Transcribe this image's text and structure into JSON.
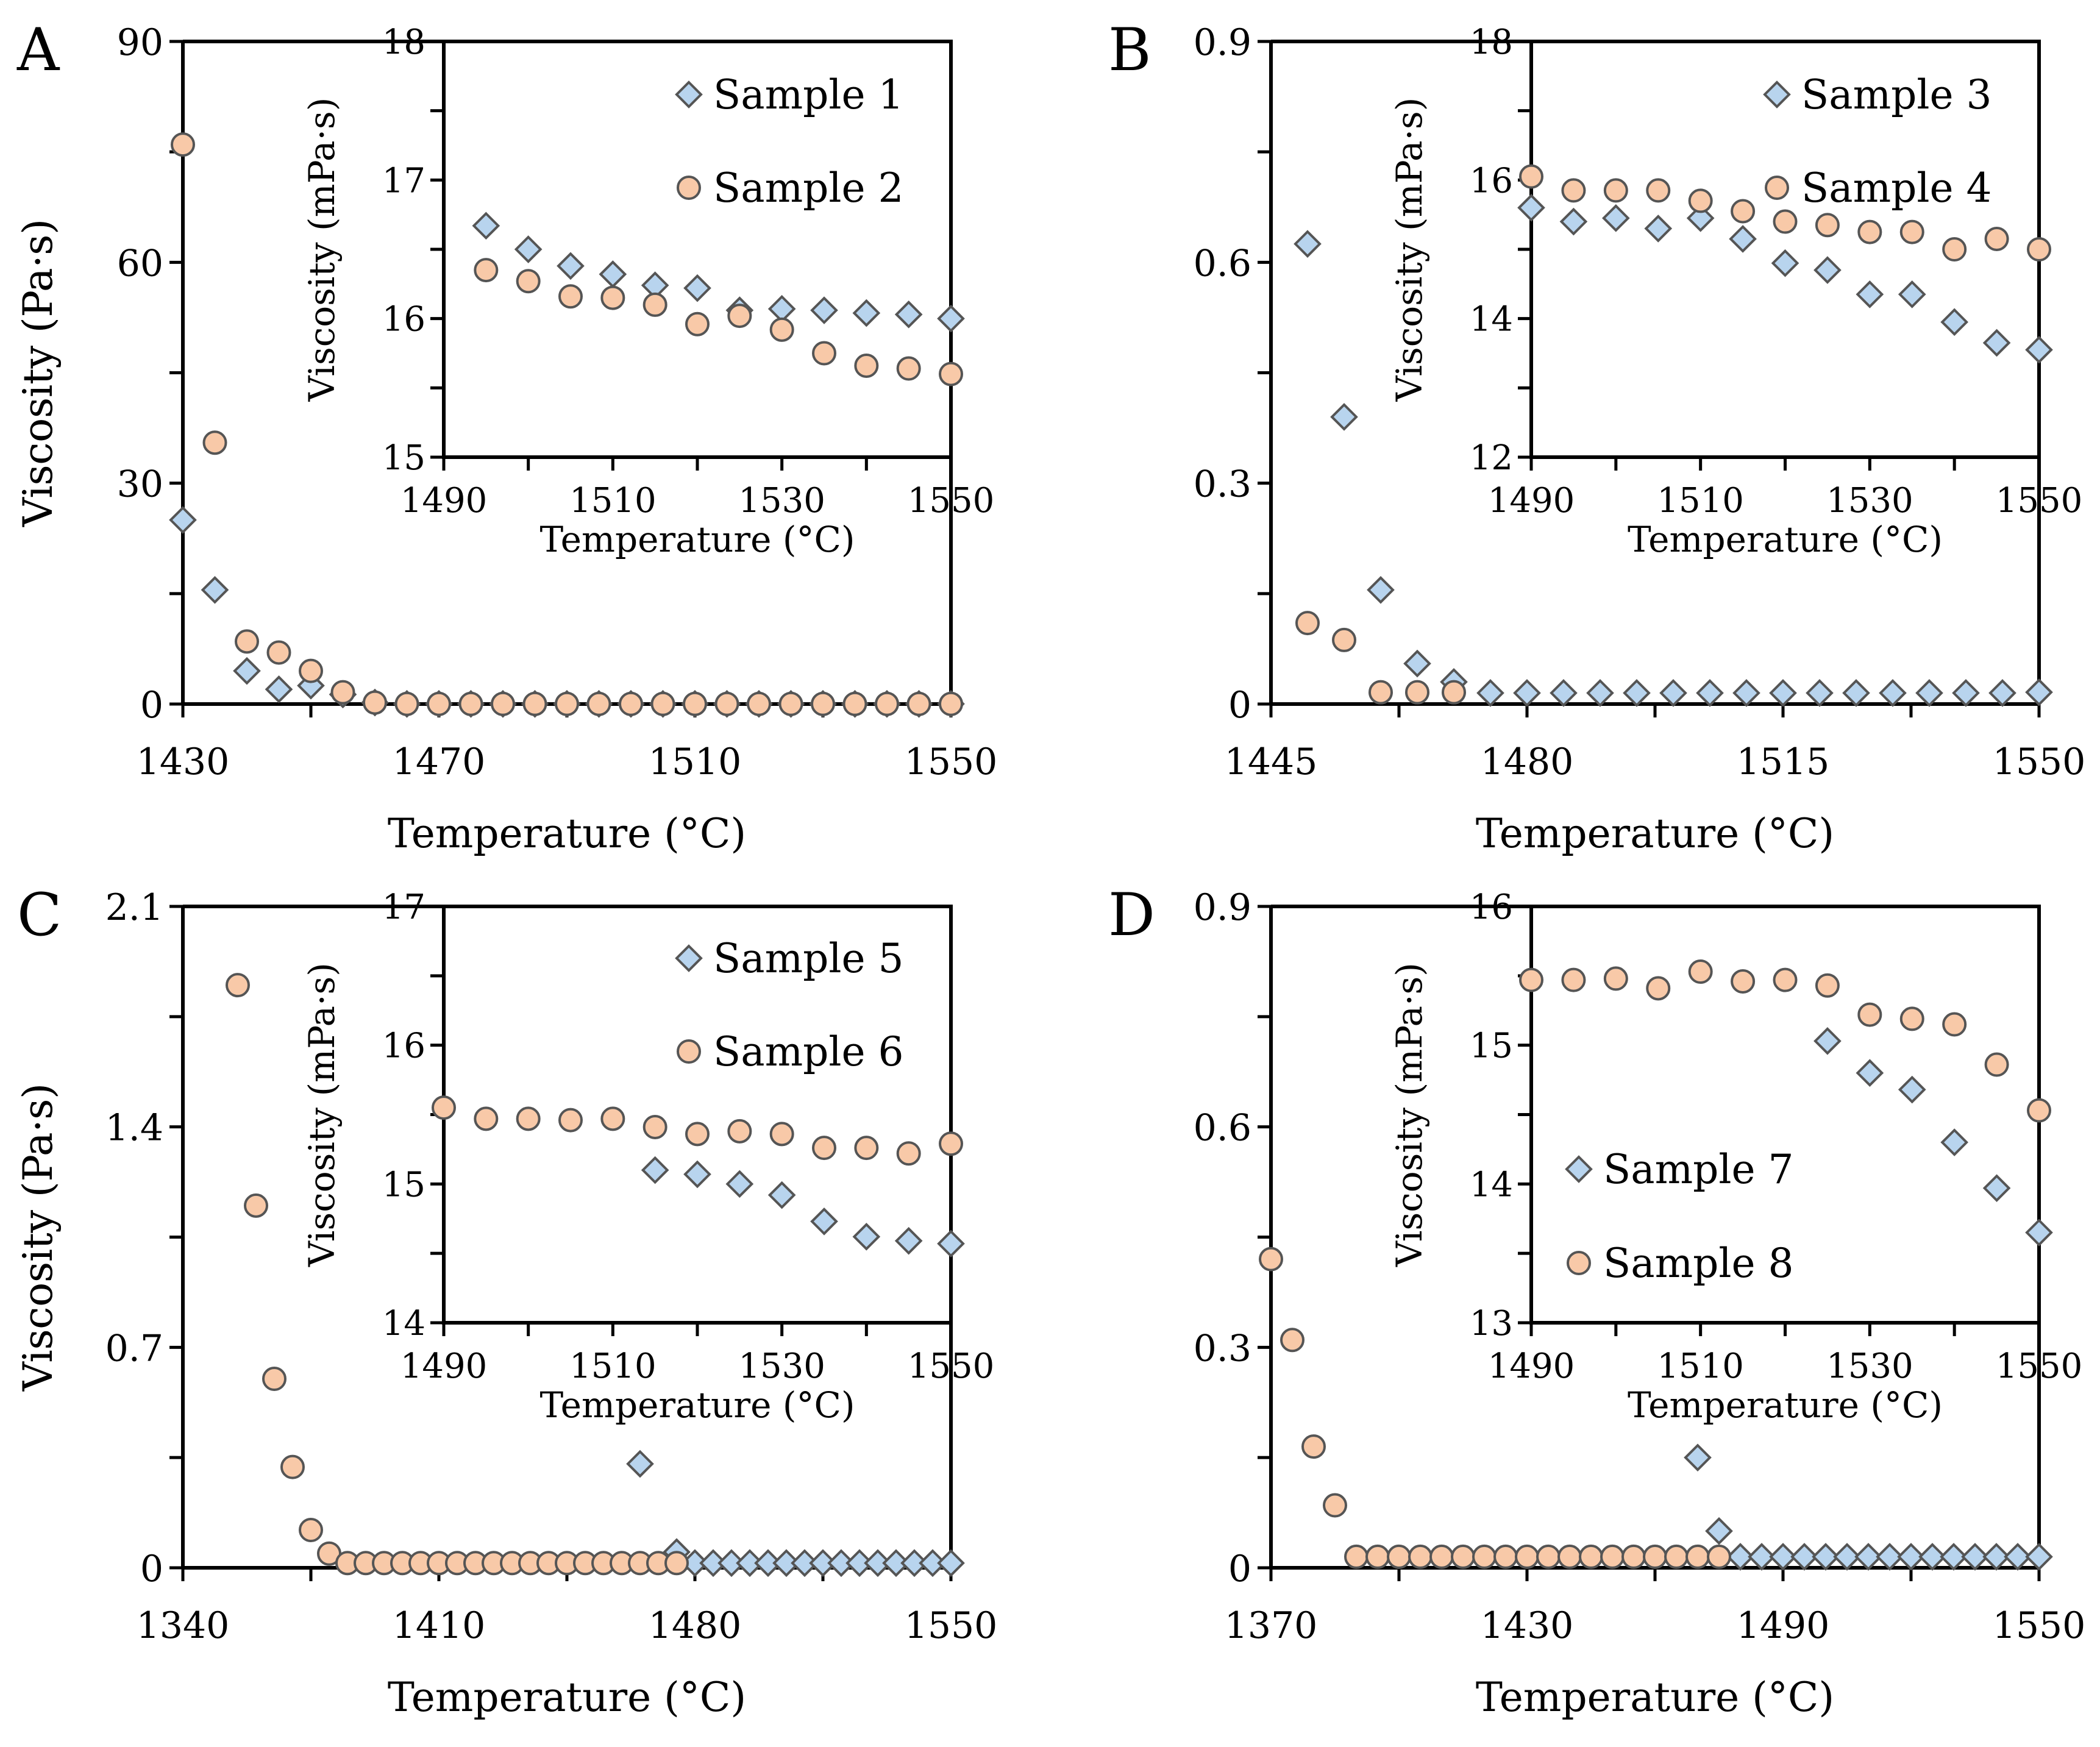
{
  "colors": {
    "sample_odd": "#b8d4ee",
    "sample_even": "#f8c9a8",
    "marker_edge": "#555555",
    "axis": "#000000"
  },
  "chart_data": [
    {
      "panel": "A",
      "type": "scatter",
      "xlabel": "Temperature (°C)",
      "ylabel": "Viscosity (Pa·s)",
      "xlim": [
        1430,
        1550
      ],
      "ylim": [
        0,
        90
      ],
      "xticks": [
        1430,
        1470,
        1510,
        1550
      ],
      "yticks": [
        0,
        30,
        60,
        90
      ],
      "series": [
        {
          "name": "Sample 1",
          "marker": "diamond",
          "x": [
            1430,
            1435,
            1440,
            1445,
            1450,
            1455,
            1460,
            1465,
            1470,
            1475,
            1480,
            1485,
            1490,
            1495,
            1500,
            1505,
            1510,
            1515,
            1520,
            1525,
            1530,
            1535,
            1540,
            1545,
            1550
          ],
          "y": [
            25,
            15.5,
            4.5,
            2,
            2.5,
            1.3,
            0.2,
            0.02,
            0.02,
            0.02,
            0.02,
            0.02,
            0.02,
            0.02,
            0.02,
            0.02,
            0.02,
            0.02,
            0.02,
            0.02,
            0.02,
            0.02,
            0.02,
            0.02,
            0.02
          ]
        },
        {
          "name": "Sample 2",
          "marker": "circle",
          "x": [
            1430,
            1435,
            1440,
            1445,
            1450,
            1455,
            1460,
            1465,
            1470,
            1475,
            1480,
            1485,
            1490,
            1495,
            1500,
            1505,
            1510,
            1515,
            1520,
            1525,
            1530,
            1535,
            1540,
            1545,
            1550
          ],
          "y": [
            76,
            35.5,
            8.5,
            7,
            4.5,
            1.6,
            0.2,
            0.02,
            0.02,
            0.02,
            0.02,
            0.02,
            0.02,
            0.02,
            0.02,
            0.02,
            0.02,
            0.02,
            0.02,
            0.02,
            0.02,
            0.02,
            0.02,
            0.02,
            0.02
          ]
        }
      ],
      "inset": {
        "xlabel": "Temperature (°C)",
        "ylabel": "Viscosity (mPa·s)",
        "xlim": [
          1490,
          1550
        ],
        "ylim": [
          15,
          18
        ],
        "xticks": [
          1490,
          1510,
          1530,
          1550
        ],
        "yticks": [
          15,
          16,
          17,
          18
        ],
        "legend_position": "top-right",
        "series": [
          {
            "name": "Sample 1",
            "marker": "diamond",
            "x": [
              1495,
              1500,
              1505,
              1510,
              1515,
              1520,
              1525,
              1530,
              1535,
              1540,
              1545,
              1550
            ],
            "y": [
              16.67,
              16.5,
              16.38,
              16.32,
              16.24,
              16.22,
              16.06,
              16.07,
              16.06,
              16.04,
              16.03,
              16.0
            ]
          },
          {
            "name": "Sample 2",
            "marker": "circle",
            "x": [
              1495,
              1500,
              1505,
              1510,
              1515,
              1520,
              1525,
              1530,
              1535,
              1540,
              1545,
              1550
            ],
            "y": [
              16.35,
              16.27,
              16.16,
              16.15,
              16.1,
              15.96,
              16.02,
              15.92,
              15.75,
              15.66,
              15.64,
              15.6
            ]
          }
        ]
      }
    },
    {
      "panel": "B",
      "type": "scatter",
      "xlabel": "Temperature (°C)",
      "ylabel": "Viscosity (Pa·s)",
      "xlim": [
        1445,
        1550
      ],
      "ylim": [
        0,
        0.9
      ],
      "xticks": [
        1445,
        1480,
        1515,
        1550
      ],
      "yticks": [
        0,
        0.3,
        0.6,
        0.9
      ],
      "series": [
        {
          "name": "Sample 3",
          "marker": "diamond",
          "x": [
            1450,
            1455,
            1460,
            1465,
            1470,
            1475,
            1480,
            1485,
            1490,
            1495,
            1500,
            1505,
            1510,
            1515,
            1520,
            1525,
            1530,
            1535,
            1540,
            1545,
            1550
          ],
          "y": [
            0.625,
            0.39,
            0.155,
            0.055,
            0.03,
            0.015,
            0.015,
            0.015,
            0.015,
            0.015,
            0.015,
            0.015,
            0.015,
            0.015,
            0.015,
            0.015,
            0.015,
            0.015,
            0.015,
            0.015,
            0.016
          ]
        },
        {
          "name": "Sample 4",
          "marker": "circle",
          "x": [
            1450,
            1455,
            1460,
            1465,
            1470
          ],
          "y": [
            0.11,
            0.087,
            0.016,
            0.016,
            0.016
          ]
        }
      ],
      "inset": {
        "xlabel": "Temperature (°C)",
        "ylabel": "Viscosity (mPa·s)",
        "xlim": [
          1490,
          1550
        ],
        "ylim": [
          12,
          18
        ],
        "xticks": [
          1490,
          1510,
          1530,
          1550
        ],
        "yticks": [
          12,
          14,
          16,
          18
        ],
        "legend_position": "top-right",
        "series": [
          {
            "name": "Sample 3",
            "marker": "diamond",
            "x": [
              1490,
              1495,
              1500,
              1505,
              1510,
              1515,
              1520,
              1525,
              1530,
              1535,
              1540,
              1545,
              1550
            ],
            "y": [
              15.6,
              15.4,
              15.45,
              15.3,
              15.45,
              15.15,
              14.8,
              14.7,
              14.35,
              14.35,
              13.95,
              13.65,
              13.55
            ]
          },
          {
            "name": "Sample 4",
            "marker": "circle",
            "x": [
              1490,
              1495,
              1500,
              1505,
              1510,
              1515,
              1520,
              1525,
              1530,
              1535,
              1540,
              1545,
              1550
            ],
            "y": [
              16.05,
              15.85,
              15.85,
              15.85,
              15.7,
              15.55,
              15.4,
              15.35,
              15.25,
              15.25,
              15.0,
              15.15,
              15.0
            ]
          }
        ]
      }
    },
    {
      "panel": "C",
      "type": "scatter",
      "xlabel": "Temperature (°C)",
      "ylabel": "Viscosity (Pa·s)",
      "xlim": [
        1340,
        1550
      ],
      "ylim": [
        0,
        2.1
      ],
      "xticks": [
        1340,
        1410,
        1480,
        1550
      ],
      "yticks": [
        0,
        0.7,
        1.4,
        2.1
      ],
      "series": [
        {
          "name": "Sample 5",
          "marker": "diamond",
          "x": [
            1465,
            1475,
            1480,
            1485,
            1490,
            1495,
            1500,
            1505,
            1510,
            1515,
            1520,
            1525,
            1530,
            1535,
            1540,
            1545,
            1550
          ],
          "y": [
            0.33,
            0.05,
            0.015,
            0.015,
            0.015,
            0.015,
            0.015,
            0.015,
            0.015,
            0.015,
            0.015,
            0.015,
            0.015,
            0.015,
            0.015,
            0.015,
            0.015
          ]
        },
        {
          "name": "Sample 6",
          "marker": "circle",
          "x": [
            1355,
            1360,
            1365,
            1370,
            1375,
            1380,
            1385,
            1390,
            1395,
            1400,
            1405,
            1410,
            1415,
            1420,
            1425,
            1430,
            1435,
            1440,
            1445,
            1450,
            1455,
            1460,
            1465,
            1470,
            1475
          ],
          "y": [
            1.85,
            1.15,
            0.6,
            0.32,
            0.12,
            0.045,
            0.015,
            0.015,
            0.015,
            0.015,
            0.015,
            0.015,
            0.015,
            0.015,
            0.015,
            0.015,
            0.015,
            0.015,
            0.015,
            0.015,
            0.015,
            0.015,
            0.015,
            0.015,
            0.015
          ]
        }
      ],
      "inset": {
        "xlabel": "Temperature (°C)",
        "ylabel": "Viscosity (mPa·s)",
        "xlim": [
          1490,
          1550
        ],
        "ylim": [
          14,
          17
        ],
        "xticks": [
          1490,
          1510,
          1530,
          1550
        ],
        "yticks": [
          14,
          15,
          16,
          17
        ],
        "legend_position": "top-right",
        "series": [
          {
            "name": "Sample 5",
            "marker": "diamond",
            "x": [
              1515,
              1520,
              1525,
              1530,
              1535,
              1540,
              1545,
              1550
            ],
            "y": [
              15.1,
              15.07,
              15.0,
              14.92,
              14.73,
              14.62,
              14.59,
              14.57
            ]
          },
          {
            "name": "Sample 6",
            "marker": "circle",
            "x": [
              1490,
              1495,
              1500,
              1505,
              1510,
              1515,
              1520,
              1525,
              1530,
              1535,
              1540,
              1545,
              1550
            ],
            "y": [
              15.55,
              15.47,
              15.47,
              15.46,
              15.47,
              15.41,
              15.36,
              15.38,
              15.36,
              15.26,
              15.26,
              15.22,
              15.29
            ]
          }
        ]
      }
    },
    {
      "panel": "D",
      "type": "scatter",
      "xlabel": "Temperature (°C)",
      "ylabel": "Viscosity (Pa·s)",
      "xlim": [
        1370,
        1550
      ],
      "ylim": [
        0,
        0.9
      ],
      "xticks": [
        1370,
        1430,
        1490,
        1550
      ],
      "yticks": [
        0,
        0.3,
        0.6,
        0.9
      ],
      "series": [
        {
          "name": "Sample 7",
          "marker": "diamond",
          "x": [
            1470,
            1475,
            1480,
            1485,
            1490,
            1495,
            1500,
            1505,
            1510,
            1515,
            1520,
            1525,
            1530,
            1535,
            1540,
            1545,
            1550
          ],
          "y": [
            0.15,
            0.05,
            0.015,
            0.015,
            0.015,
            0.015,
            0.015,
            0.015,
            0.015,
            0.015,
            0.015,
            0.015,
            0.015,
            0.015,
            0.015,
            0.015,
            0.015
          ]
        },
        {
          "name": "Sample 8",
          "marker": "circle",
          "x": [
            1370,
            1375,
            1380,
            1385,
            1390,
            1395,
            1400,
            1405,
            1410,
            1415,
            1420,
            1425,
            1430,
            1435,
            1440,
            1445,
            1450,
            1455,
            1460,
            1465,
            1470,
            1475
          ],
          "y": [
            0.42,
            0.31,
            0.165,
            0.085,
            0.015,
            0.015,
            0.015,
            0.015,
            0.015,
            0.015,
            0.015,
            0.015,
            0.015,
            0.015,
            0.015,
            0.015,
            0.015,
            0.015,
            0.015,
            0.015,
            0.015,
            0.015
          ]
        }
      ],
      "inset": {
        "xlabel": "Temperature (°C)",
        "ylabel": "Viscosity (mPa·s)",
        "xlim": [
          1490,
          1550
        ],
        "ylim": [
          13,
          16
        ],
        "xticks": [
          1490,
          1510,
          1530,
          1550
        ],
        "yticks": [
          13,
          14,
          15,
          16
        ],
        "legend_position": "bottom-left",
        "series": [
          {
            "name": "Sample 7",
            "marker": "diamond",
            "x": [
              1525,
              1530,
              1535,
              1540,
              1545,
              1550
            ],
            "y": [
              15.03,
              14.8,
              14.68,
              14.3,
              13.97,
              13.65
            ]
          },
          {
            "name": "Sample 8",
            "marker": "circle",
            "x": [
              1490,
              1495,
              1500,
              1505,
              1510,
              1515,
              1520,
              1525,
              1530,
              1535,
              1540,
              1545,
              1550
            ],
            "y": [
              15.47,
              15.47,
              15.48,
              15.41,
              15.53,
              15.46,
              15.47,
              15.43,
              15.22,
              15.19,
              15.15,
              14.86,
              14.53
            ]
          }
        ]
      }
    }
  ]
}
